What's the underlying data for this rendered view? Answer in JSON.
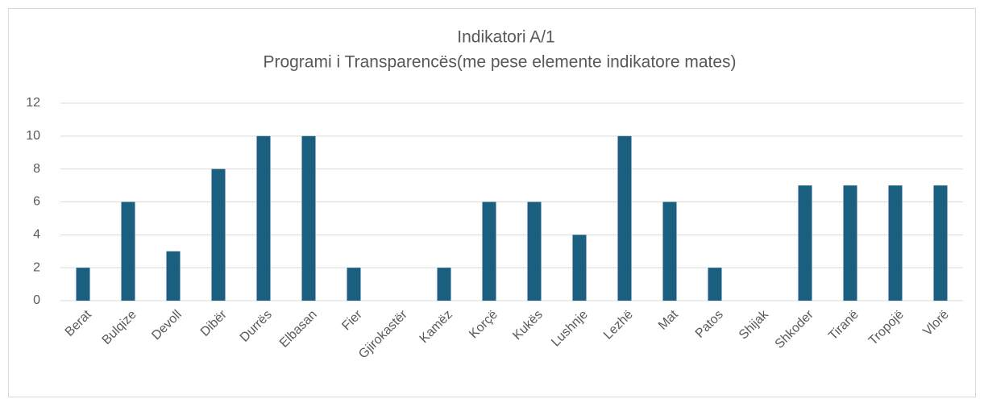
{
  "chart_data": {
    "type": "bar",
    "title": "Indikatori A/1",
    "subtitle": "Programi i Transparencës(me pese elemente indikatore mates)",
    "categories": [
      "Berat",
      "Bulqize",
      "Devoll",
      "Dibër",
      "Durrës",
      "Elbasan",
      "Fier",
      "Gjirokastër",
      "Kamëz",
      "Korçë",
      "Kukës",
      "Lushnje",
      "Lezhë",
      "Mat",
      "Patos",
      "Shijak",
      "Shkoder",
      "Tiranë",
      "Tropojë",
      "Vlorë"
    ],
    "values": [
      2,
      6,
      3,
      8,
      10,
      10,
      2,
      0,
      2,
      6,
      6,
      4,
      10,
      6,
      2,
      0,
      7,
      7,
      7,
      7
    ],
    "color": "#1a5e80",
    "ylim": [
      0,
      12
    ],
    "yticks": [
      0,
      2,
      4,
      6,
      8,
      10,
      12
    ],
    "grid": true
  }
}
